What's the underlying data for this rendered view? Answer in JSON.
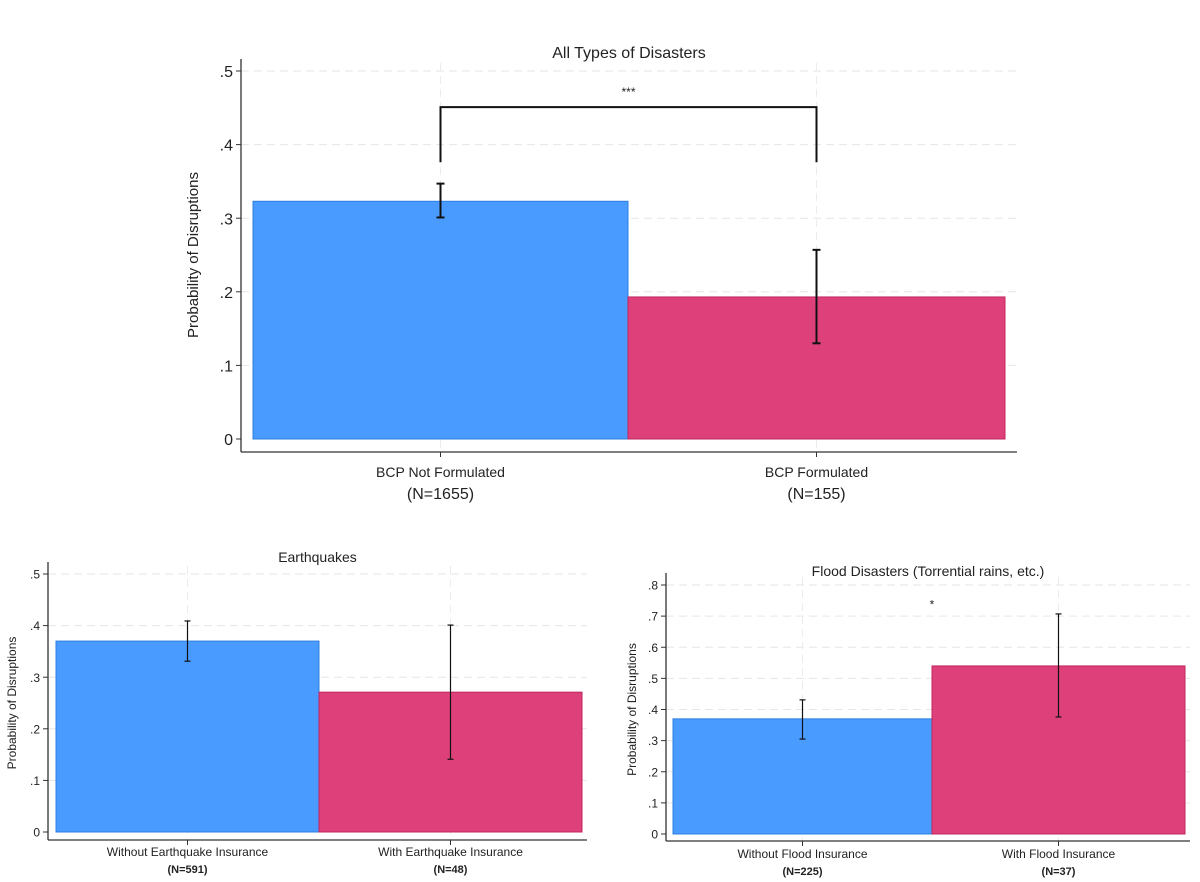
{
  "colors": {
    "blue": "#4a9bff",
    "blue_edge": "#2f7fe0",
    "red": "#de4179",
    "red_edge": "#c0255d"
  },
  "chart_data": [
    {
      "type": "bar",
      "title": "All Types of Disasters",
      "ylabel": "Probability of Disruptions",
      "ylim": [
        0,
        0.5
      ],
      "yticks": [
        0,
        0.1,
        0.2,
        0.3,
        0.4,
        0.5
      ],
      "ytick_labels": [
        "0",
        ".1",
        ".2",
        ".3",
        ".4",
        ".5"
      ],
      "grid": true,
      "categories": [
        "BCP Not Formulated",
        "BCP Formulated"
      ],
      "n_labels": [
        "(N=1655)",
        "(N=155)"
      ],
      "values": [
        0.323,
        0.193
      ],
      "ci_low": [
        0.301,
        0.13
      ],
      "ci_high": [
        0.347,
        0.257
      ],
      "significance": {
        "label": "***",
        "bracket_y": 0.451,
        "bracket_bottom": 0.376
      }
    },
    {
      "type": "bar",
      "title": "Earthquakes",
      "ylabel": "Probability of Disruptions",
      "ylim": [
        0,
        0.5
      ],
      "yticks": [
        0,
        0.1,
        0.2,
        0.3,
        0.4,
        0.5
      ],
      "ytick_labels": [
        "0",
        ".1",
        ".2",
        ".3",
        ".4",
        ".5"
      ],
      "grid": true,
      "categories": [
        "Without Earthquake Insurance",
        "With Earthquake Insurance"
      ],
      "n_labels": [
        "(N=591)",
        "(N=48)"
      ],
      "values": [
        0.37,
        0.271
      ],
      "ci_low": [
        0.331,
        0.141
      ],
      "ci_high": [
        0.409,
        0.401
      ]
    },
    {
      "type": "bar",
      "title": "Flood Disasters (Torrential rains, etc.)",
      "ylabel": "Probability of Disruptions",
      "ylim": [
        0,
        0.8
      ],
      "yticks": [
        0,
        0.1,
        0.2,
        0.3,
        0.4,
        0.5,
        0.6,
        0.7,
        0.8
      ],
      "ytick_labels": [
        "0",
        ".1",
        ".2",
        ".3",
        ".4",
        ".5",
        ".6",
        ".7",
        ".8"
      ],
      "grid": true,
      "categories": [
        "Without Flood Insurance",
        "With Flood Insurance"
      ],
      "n_labels": [
        "(N=225)",
        "(N=37)"
      ],
      "values": [
        0.37,
        0.54
      ],
      "ci_low": [
        0.305,
        0.376
      ],
      "ci_high": [
        0.431,
        0.707
      ],
      "significance": {
        "label": "*",
        "label_y": 0.75
      }
    }
  ]
}
